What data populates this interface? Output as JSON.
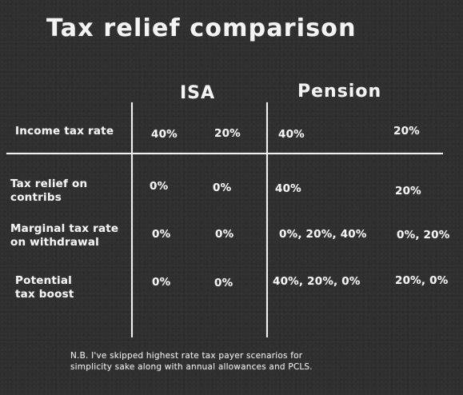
{
  "title": "Tax relief comparison",
  "columns": {
    "isa": "ISA",
    "pension": "Pension"
  },
  "rows": [
    {
      "label": "Income tax rate",
      "cells": [
        "40%",
        "20%",
        "40%",
        "20%"
      ]
    },
    {
      "label": "Tax relief on\ncontribs",
      "cells": [
        "0%",
        "0%",
        "40%",
        "20%"
      ]
    },
    {
      "label": "Marginal tax rate\non withdrawal",
      "cells": [
        "0%",
        "0%",
        "0%, 20%, 40%",
        "0%, 20%"
      ]
    },
    {
      "label": "Potential\ntax boost",
      "cells": [
        "0%",
        "0%",
        "40%, 20%, 0%",
        "20%, 0%"
      ]
    }
  ],
  "note": "N.B. I've skipped highest rate tax payer scenarios for\nsimplicity sake along with annual allowances and PCLS.",
  "colors": {
    "board": "#2f2f2f",
    "chalk": "#f4f4f4"
  }
}
